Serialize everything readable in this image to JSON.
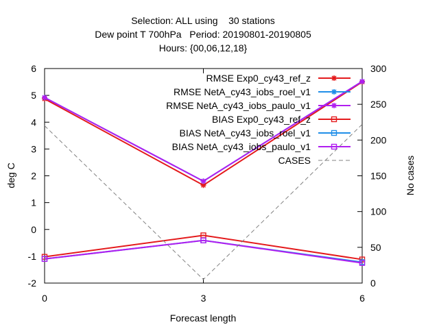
{
  "chart_data": {
    "type": "line",
    "title_lines": [
      "Selection: ALL using    30 stations",
      "Dew point T 700hPa   Period: 20190801-20190805",
      "Hours: {00,06,12,18}"
    ],
    "xlabel": "Forecast length",
    "ylabel": "deg C",
    "y2label": "No cases",
    "x": [
      0,
      3,
      6
    ],
    "x_ticks": [
      "0",
      "3",
      "6"
    ],
    "xlim": [
      0,
      6
    ],
    "ylim": [
      -2,
      6
    ],
    "y_ticks": [
      "-2",
      "-1",
      "0",
      "1",
      "2",
      "3",
      "4",
      "5",
      "6"
    ],
    "y2lim": [
      0,
      300
    ],
    "y2_ticks": [
      "0",
      "50",
      "100",
      "150",
      "200",
      "250",
      "300"
    ],
    "grid": false,
    "legend_position": "top-right",
    "series": [
      {
        "name": "RMSE Exp0_cy43_ref_z",
        "values": [
          4.87,
          1.65,
          5.5
        ],
        "color": "#e41a1c",
        "marker": "star",
        "axis": "y"
      },
      {
        "name": "RMSE NetA_cy43_iobs_roel_v1",
        "values": [
          4.92,
          1.8,
          5.52
        ],
        "color": "#1f8ee8",
        "marker": "star",
        "axis": "y"
      },
      {
        "name": "RMSE NetA_cy43_iobs_paulo_v1",
        "values": [
          4.92,
          1.8,
          5.52
        ],
        "color": "#b01ef0",
        "marker": "star",
        "axis": "y"
      },
      {
        "name": "BIAS Exp0_cy43_ref_z",
        "values": [
          -1.02,
          -0.22,
          -1.12
        ],
        "color": "#e41a1c",
        "marker": "square",
        "axis": "y"
      },
      {
        "name": "BIAS NetA_cy43_iobs_roel_v1",
        "values": [
          -1.1,
          -0.41,
          -1.22
        ],
        "color": "#1f8ee8",
        "marker": "square",
        "axis": "y"
      },
      {
        "name": "BIAS NetA_cy43_iobs_paulo_v1",
        "values": [
          -1.1,
          -0.41,
          -1.25
        ],
        "color": "#b01ef0",
        "marker": "square",
        "axis": "y"
      },
      {
        "name": "CASES",
        "values": [
          220,
          5,
          222
        ],
        "color": "#808080",
        "dashed": true,
        "axis": "y2"
      }
    ]
  }
}
